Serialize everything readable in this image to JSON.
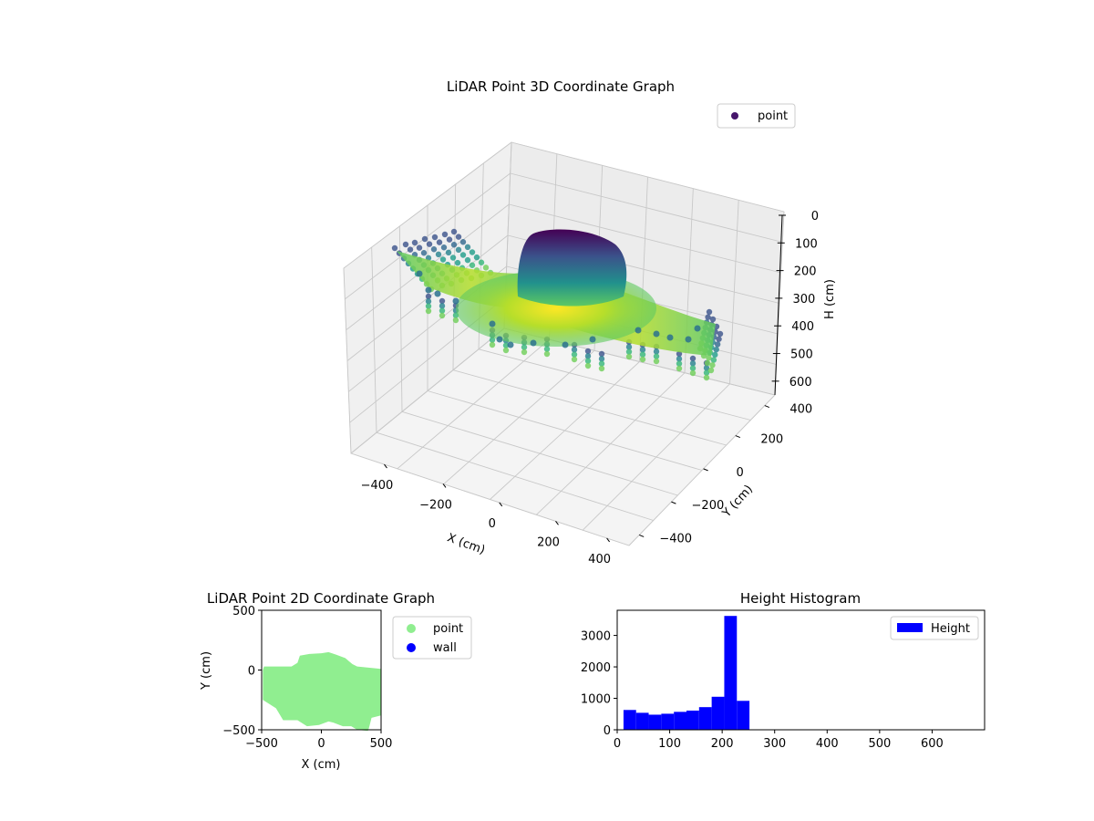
{
  "chart_data": [
    {
      "type": "scatter",
      "projection": "3d",
      "title": "LiDAR Point 3D Coordinate Graph",
      "xlabel": "X (cm)",
      "ylabel": "Y (cm)",
      "zlabel": "H (cm)",
      "xticks": [
        "−400",
        "−200",
        "0",
        "200",
        "400"
      ],
      "yticks": [
        "−400",
        "−200",
        "0",
        "200",
        "400"
      ],
      "zticks": [
        "0",
        "100",
        "200",
        "300",
        "400",
        "500",
        "600"
      ],
      "xlim": [
        -500,
        500
      ],
      "ylim": [
        -500,
        500
      ],
      "zlim": [
        0,
        650
      ],
      "z_inverted": true,
      "colormap": "viridis",
      "grid": true,
      "legend": {
        "position": "top-right",
        "entries": [
          {
            "label": "point",
            "color": "#46166b"
          }
        ]
      }
    },
    {
      "type": "scatter",
      "title": "LiDAR Point 2D Coordinate Graph",
      "xlabel": "X (cm)",
      "ylabel": "Y (cm)",
      "xlim": [
        -500,
        500
      ],
      "ylim": [
        -500,
        500
      ],
      "xticks": [
        "−500",
        "0",
        "500"
      ],
      "yticks": [
        "500",
        "0",
        "−500"
      ],
      "legend": {
        "position": "outside-right",
        "entries": [
          {
            "label": "point",
            "color": "#90ee90"
          },
          {
            "label": "wall",
            "color": "#0000ff"
          }
        ]
      },
      "series": [
        {
          "name": "point",
          "color": "#90ee90",
          "region_outline": [
            [
              -490,
              0
            ],
            [
              -480,
              30
            ],
            [
              -250,
              30
            ],
            [
              -200,
              60
            ],
            [
              -180,
              120
            ],
            [
              -100,
              135
            ],
            [
              0,
              140
            ],
            [
              60,
              150
            ],
            [
              120,
              130
            ],
            [
              200,
              100
            ],
            [
              260,
              50
            ],
            [
              300,
              30
            ],
            [
              500,
              10
            ],
            [
              500,
              -380
            ],
            [
              420,
              -400
            ],
            [
              400,
              -480
            ],
            [
              390,
              -510
            ],
            [
              300,
              -500
            ],
            [
              250,
              -470
            ],
            [
              180,
              -470
            ],
            [
              100,
              -440
            ],
            [
              60,
              -430
            ],
            [
              -20,
              -460
            ],
            [
              -120,
              -470
            ],
            [
              -200,
              -420
            ],
            [
              -320,
              -420
            ],
            [
              -380,
              -320
            ],
            [
              -490,
              -250
            ]
          ]
        },
        {
          "name": "wall",
          "color": "#0000ff",
          "points": []
        }
      ]
    },
    {
      "type": "bar",
      "title": "Height Histogram",
      "xlim": [
        0,
        700
      ],
      "ylim": [
        0,
        3800
      ],
      "xticks": [
        "0",
        "100",
        "200",
        "300",
        "400",
        "500",
        "600"
      ],
      "yticks": [
        "0",
        "1000",
        "2000",
        "3000"
      ],
      "bin_width": 24,
      "legend": {
        "position": "top-right",
        "entries": [
          {
            "label": "Height",
            "color": "#0000ff"
          }
        ]
      },
      "series": [
        {
          "name": "Height",
          "color": "#0000ff",
          "bins": [
            {
              "x0": 12,
              "x1": 36,
              "count": 630
            },
            {
              "x0": 36,
              "x1": 60,
              "count": 540
            },
            {
              "x0": 60,
              "x1": 84,
              "count": 480
            },
            {
              "x0": 84,
              "x1": 108,
              "count": 510
            },
            {
              "x0": 108,
              "x1": 132,
              "count": 570
            },
            {
              "x0": 132,
              "x1": 156,
              "count": 610
            },
            {
              "x0": 156,
              "x1": 180,
              "count": 720
            },
            {
              "x0": 180,
              "x1": 204,
              "count": 1050
            },
            {
              "x0": 204,
              "x1": 228,
              "count": 3620
            },
            {
              "x0": 228,
              "x1": 252,
              "count": 920
            }
          ]
        }
      ]
    }
  ]
}
